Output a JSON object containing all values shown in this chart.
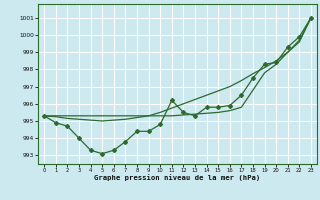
{
  "title": "Graphe pression niveau de la mer (hPa)",
  "bg_color": "#cce9f0",
  "grid_color": "#ffffff",
  "line_color": "#2d6a2d",
  "x_ticks": [
    0,
    1,
    2,
    3,
    4,
    5,
    6,
    7,
    8,
    9,
    10,
    11,
    12,
    13,
    14,
    15,
    16,
    17,
    18,
    19,
    20,
    21,
    22,
    23
  ],
  "y_ticks": [
    993,
    994,
    995,
    996,
    997,
    998,
    999,
    1000,
    1001
  ],
  "ylim": [
    992.5,
    1001.8
  ],
  "xlim": [
    -0.5,
    23.5
  ],
  "line_observed": [
    995.3,
    994.9,
    994.7,
    994.0,
    993.3,
    993.1,
    993.3,
    993.8,
    994.4,
    994.4,
    994.8,
    996.2,
    995.5,
    995.3,
    995.8,
    995.8,
    995.9,
    996.5,
    997.5,
    998.3,
    998.4,
    999.3,
    999.9,
    1001.0
  ],
  "line_smooth": [
    995.3,
    995.25,
    995.15,
    995.1,
    995.05,
    995.0,
    995.05,
    995.1,
    995.2,
    995.3,
    995.5,
    995.75,
    996.0,
    996.25,
    996.5,
    996.75,
    997.0,
    997.35,
    997.75,
    998.1,
    998.5,
    999.0,
    999.6,
    1001.0
  ],
  "line_flat": [
    995.3,
    995.3,
    995.3,
    995.3,
    995.3,
    995.3,
    995.3,
    995.3,
    995.3,
    995.3,
    995.3,
    995.3,
    995.35,
    995.4,
    995.45,
    995.5,
    995.6,
    995.8,
    996.8,
    997.8,
    998.3,
    999.0,
    999.7,
    1001.0
  ]
}
